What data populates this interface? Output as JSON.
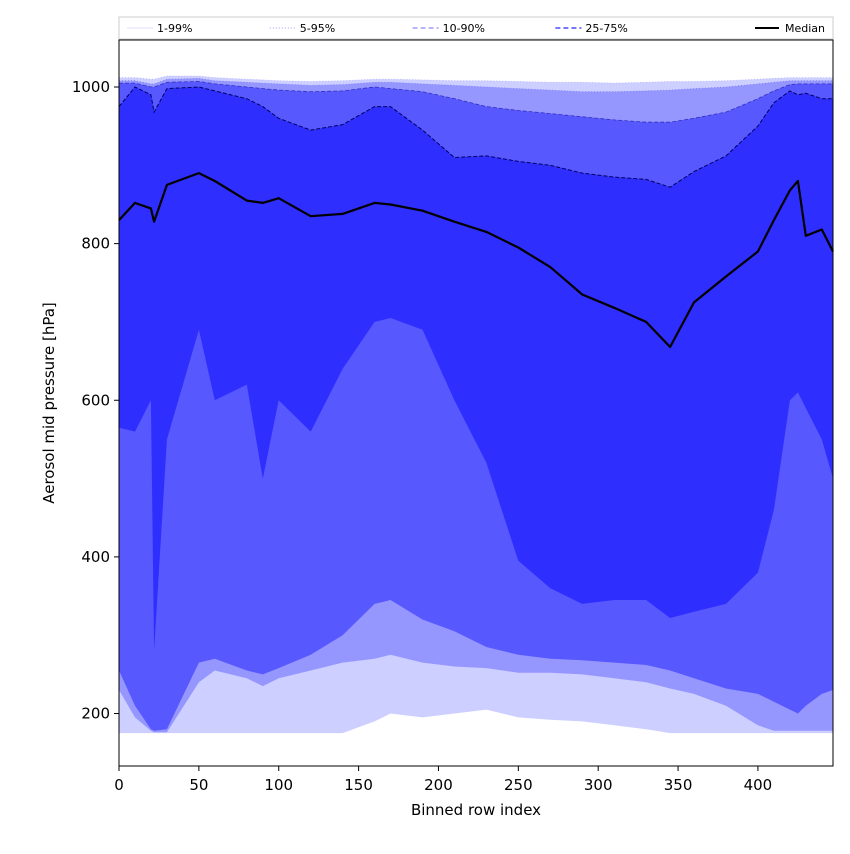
{
  "chart_data": {
    "type": "area",
    "title": "",
    "xlabel": "Binned row index",
    "ylabel": "Aerosol mid pressure [hPa]",
    "xlim": [
      0,
      447
    ],
    "ylim": [
      133,
      1060
    ],
    "xticks": [
      0,
      50,
      100,
      150,
      200,
      250,
      300,
      350,
      400
    ],
    "yticks": [
      200,
      400,
      600,
      800,
      1000
    ],
    "grid": false,
    "legend_position": "top",
    "x": [
      0,
      10,
      20,
      22,
      30,
      50,
      60,
      80,
      90,
      100,
      120,
      140,
      160,
      170,
      190,
      210,
      230,
      250,
      270,
      290,
      310,
      330,
      345,
      360,
      380,
      400,
      410,
      420,
      425,
      430,
      440,
      447
    ],
    "bands": [
      {
        "name": "1-99%",
        "color": "#cccfff",
        "lower": [
          175,
          175,
          175,
          175,
          175,
          175,
          175,
          175,
          175,
          175,
          175,
          175,
          190,
          200,
          195,
          200,
          205,
          195,
          192,
          190,
          185,
          180,
          175,
          175,
          175,
          175,
          175,
          175,
          175,
          175,
          175,
          175
        ],
        "upper": [
          1012,
          1012,
          1010,
          1010,
          1014,
          1014,
          1012,
          1010,
          1009,
          1008,
          1007,
          1008,
          1010,
          1010,
          1009,
          1008,
          1008,
          1007,
          1006,
          1006,
          1005,
          1006,
          1007,
          1007,
          1008,
          1010,
          1011,
          1012,
          1012,
          1012,
          1012,
          1012
        ]
      },
      {
        "name": "5-95%",
        "color": "#9696ff",
        "lower": [
          230,
          195,
          178,
          176,
          176,
          240,
          255,
          245,
          235,
          245,
          255,
          265,
          270,
          275,
          265,
          260,
          258,
          252,
          252,
          250,
          245,
          240,
          232,
          225,
          210,
          185,
          178,
          178,
          178,
          178,
          178,
          178
        ],
        "upper": [
          1008,
          1008,
          1004,
          1004,
          1010,
          1011,
          1008,
          1006,
          1005,
          1004,
          1002,
          1003,
          1006,
          1006,
          1004,
          1002,
          1000,
          998,
          996,
          994,
          994,
          995,
          996,
          998,
          1000,
          1004,
          1006,
          1008,
          1008,
          1008,
          1008,
          1008
        ]
      },
      {
        "name": "10-90%",
        "color": "#5858ff",
        "lower": [
          255,
          210,
          180,
          178,
          180,
          265,
          270,
          255,
          250,
          258,
          275,
          300,
          340,
          345,
          320,
          305,
          285,
          275,
          270,
          268,
          265,
          262,
          255,
          245,
          232,
          225,
          215,
          205,
          200,
          210,
          225,
          230
        ],
        "upper": [
          1005,
          1005,
          1000,
          1000,
          1006,
          1007,
          1004,
          1000,
          998,
          996,
          994,
          995,
          1000,
          998,
          994,
          985,
          975,
          970,
          966,
          962,
          958,
          955,
          955,
          960,
          968,
          985,
          995,
          1003,
          1004,
          1004,
          1004,
          1004
        ]
      },
      {
        "name": "25-75%",
        "color": "#2e2eff",
        "lower": [
          565,
          560,
          600,
          280,
          550,
          690,
          600,
          620,
          500,
          600,
          560,
          640,
          700,
          705,
          690,
          600,
          520,
          395,
          360,
          340,
          345,
          345,
          322,
          330,
          340,
          380,
          460,
          600,
          610,
          590,
          550,
          500
        ],
        "upper": [
          975,
          1000,
          990,
          968,
          998,
          1000,
          995,
          985,
          975,
          960,
          945,
          952,
          975,
          975,
          945,
          910,
          912,
          905,
          900,
          890,
          885,
          882,
          872,
          892,
          912,
          950,
          980,
          995,
          990,
          992,
          985,
          985
        ]
      }
    ],
    "median": {
      "name": "Median",
      "color": "#000000",
      "y": [
        830,
        852,
        845,
        828,
        875,
        890,
        880,
        855,
        852,
        858,
        835,
        838,
        852,
        850,
        842,
        828,
        815,
        795,
        770,
        735,
        718,
        700,
        668,
        725,
        758,
        790,
        830,
        868,
        880,
        810,
        818,
        790
      ]
    },
    "legend": [
      {
        "label": "1-99%",
        "style": "solid",
        "color": "#d4d4ff",
        "width": 0.8
      },
      {
        "label": "5-95%",
        "style": "dotted",
        "color": "#9999ff",
        "width": 1
      },
      {
        "label": "10-90%",
        "style": "dashed",
        "color": "#8a8aff",
        "width": 1.2
      },
      {
        "label": "25-75%",
        "style": "dashed",
        "color": "#4a4aff",
        "width": 1.4
      },
      {
        "label": "Median",
        "style": "solid",
        "color": "#000000",
        "width": 2
      }
    ]
  }
}
